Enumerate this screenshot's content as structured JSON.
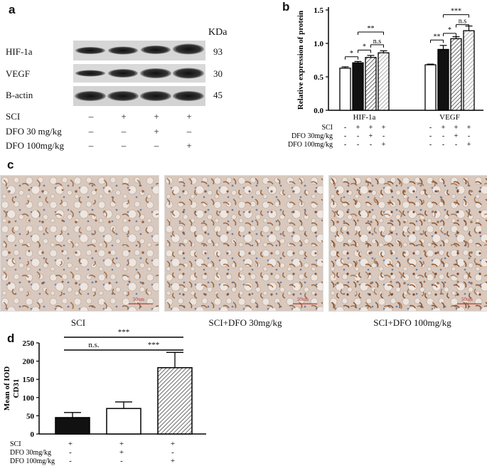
{
  "panels": {
    "a": "a",
    "b": "b",
    "c": "c",
    "d": "d"
  },
  "western_blot": {
    "unit_header": "KDa",
    "bands": [
      {
        "protein": "HIF-1a",
        "kda": "93"
      },
      {
        "protein": "VEGF",
        "kda": "30"
      },
      {
        "protein": "B-actin",
        "kda": "45"
      }
    ],
    "conditions": [
      {
        "label": "SCI",
        "marks": [
          "–",
          "+",
          "+",
          "+"
        ]
      },
      {
        "label": "DFO 30  mg/kg",
        "marks": [
          "–",
          "–",
          "+",
          "–"
        ]
      },
      {
        "label": "DFO 100mg/kg",
        "marks": [
          "–",
          "–",
          "–",
          "+"
        ]
      }
    ]
  },
  "chart_data": [
    {
      "type": "bar",
      "panel": "b",
      "ylabel": "Relative expression of protein",
      "ylim": [
        0,
        1.5
      ],
      "yticks": [
        "0.0",
        "0.5",
        "1.0",
        "1.5"
      ],
      "groups": [
        {
          "name": "HIF-1a",
          "values": [
            0.63,
            0.71,
            0.79,
            0.86
          ],
          "errors": [
            0.02,
            0.02,
            0.03,
            0.03
          ]
        },
        {
          "name": "VEGF",
          "values": [
            0.68,
            0.91,
            1.07,
            1.19
          ],
          "errors": [
            0.01,
            0.06,
            0.03,
            0.07
          ]
        }
      ],
      "bar_styles": [
        "white",
        "black",
        "hatched",
        "hatched-light"
      ],
      "significance": [
        {
          "group": 0,
          "from": 0,
          "to": 1,
          "label": "*"
        },
        {
          "group": 0,
          "from": 1,
          "to": 2,
          "label": "*"
        },
        {
          "group": 0,
          "from": 2,
          "to": 3,
          "label": "n.s"
        },
        {
          "group": 0,
          "from": 1,
          "to": 3,
          "label": "**"
        },
        {
          "group": 1,
          "from": 0,
          "to": 1,
          "label": "**"
        },
        {
          "group": 1,
          "from": 1,
          "to": 2,
          "label": "*"
        },
        {
          "group": 1,
          "from": 2,
          "to": 3,
          "label": "n.s"
        },
        {
          "group": 1,
          "from": 1,
          "to": 3,
          "label": "***"
        }
      ],
      "conditions": [
        {
          "label": "SCI",
          "marks": [
            "-",
            "+",
            "+",
            "+",
            "-",
            "+",
            "+",
            "+"
          ]
        },
        {
          "label": "DFO 30mg/kg",
          "marks": [
            "-",
            "-",
            "+",
            "-",
            "-",
            "-",
            "+",
            "-"
          ]
        },
        {
          "label": "DFO 100mg/kg",
          "marks": [
            "-",
            "-",
            "-",
            "+",
            "-",
            "-",
            "-",
            "+"
          ]
        }
      ]
    },
    {
      "type": "bar",
      "panel": "d",
      "ylabel": "Mean of IOD\nCD31",
      "ylim": [
        0,
        250
      ],
      "yticks": [
        "0",
        "50",
        "100",
        "150",
        "200",
        "250"
      ],
      "values": [
        45,
        70,
        182
      ],
      "errors": [
        14,
        18,
        42
      ],
      "bar_styles": [
        "black",
        "white",
        "hatched"
      ],
      "significance": [
        {
          "from": 0,
          "to": 1,
          "label": "n.s."
        },
        {
          "from": 1,
          "to": 2,
          "label": "***"
        },
        {
          "from": 0,
          "to": 2,
          "label": "***"
        }
      ],
      "conditions": [
        {
          "label": "SCI",
          "marks": [
            "+",
            "+",
            "+"
          ]
        },
        {
          "label": "DFO 30mg/kg",
          "marks": [
            "-",
            "+",
            "-"
          ]
        },
        {
          "label": "DFO 100mg/kg",
          "marks": [
            "-",
            "-",
            "+"
          ]
        }
      ]
    }
  ],
  "histology": {
    "scale_bar": "50um",
    "captions": [
      "SCI",
      "SCI+DFO 30mg/kg",
      "SCI+DFO 100mg/kg"
    ]
  }
}
